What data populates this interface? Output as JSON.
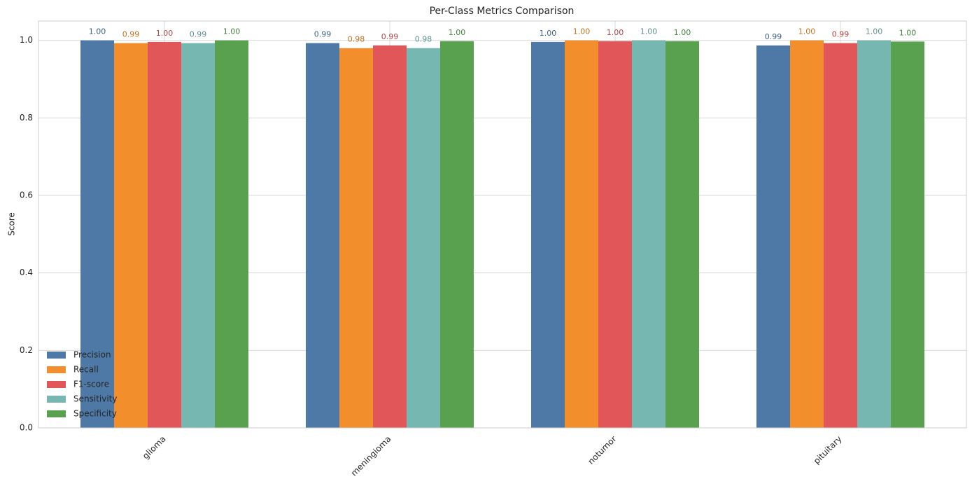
{
  "chart_data": {
    "type": "bar",
    "title": "Per-Class Metrics Comparison",
    "y_label": "Score",
    "categories": [
      "glioma",
      "meningioma",
      "notumor",
      "pituitary"
    ],
    "series": [
      {
        "name": "Precision",
        "color": "#4e79a7",
        "values": [
          1.0,
          0.993,
          0.996,
          0.987
        ],
        "value_labels": [
          "1.00",
          "0.99",
          "1.00",
          "0.99"
        ]
      },
      {
        "name": "Recall",
        "color": "#f28e2b",
        "values": [
          0.993,
          0.98,
          1.0,
          1.0
        ],
        "value_labels": [
          "0.99",
          "0.98",
          "1.00",
          "1.00"
        ]
      },
      {
        "name": "F1-score",
        "color": "#e15759",
        "values": [
          0.996,
          0.987,
          0.998,
          0.993
        ],
        "value_labels": [
          "1.00",
          "0.99",
          "1.00",
          "0.99"
        ]
      },
      {
        "name": "Sensitivity",
        "color": "#76b7b2",
        "values": [
          0.993,
          0.98,
          1.0,
          1.0
        ],
        "value_labels": [
          "0.99",
          "0.98",
          "1.00",
          "1.00"
        ]
      },
      {
        "name": "Specificity",
        "color": "#59a14f",
        "values": [
          1.0,
          0.998,
          0.998,
          0.997
        ],
        "value_labels": [
          "1.00",
          "1.00",
          "1.00",
          "1.00"
        ]
      }
    ],
    "ylim": [
      0,
      1.05
    ],
    "yticks": [
      {
        "value": 0,
        "label": "0.0"
      },
      {
        "value": 0.2,
        "label": "0.2"
      },
      {
        "value": 0.4,
        "label": "0.4"
      },
      {
        "value": 0.6,
        "label": "0.6"
      },
      {
        "value": 0.8,
        "label": "0.8"
      },
      {
        "value": 1,
        "label": "1.0"
      }
    ],
    "grid": true,
    "legend": "lower left"
  }
}
